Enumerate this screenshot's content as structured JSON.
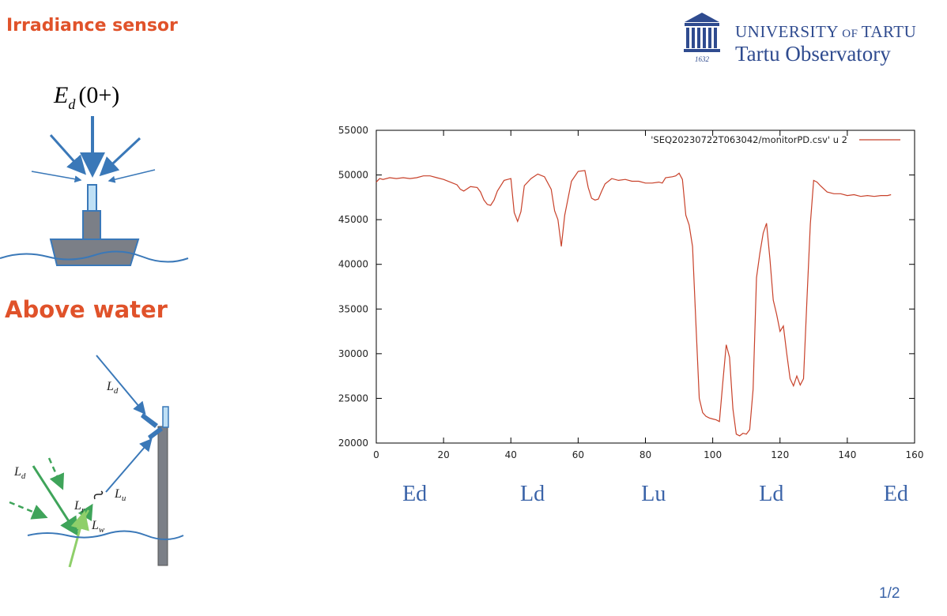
{
  "slide": {
    "irradiance_title": "Irradiance  sensor",
    "irradiance_symbol_main": "E",
    "irradiance_symbol_sub": "d",
    "irradiance_symbol_rest": "(0+)",
    "above_water_title": "Above water",
    "above_labels": {
      "ld_sky": "L",
      "ld_sky_sub": "d",
      "ld_left": "L",
      "ld_left_sub": "d",
      "lr": "L",
      "lr_sub": "r",
      "lu": "L",
      "lu_sub": "u",
      "lw": "L",
      "lw_sub": "w"
    },
    "page_number": "1/2",
    "segment_labels": [
      "Ed",
      "Ld",
      "Lu",
      "Ld",
      "Ed"
    ]
  },
  "logo": {
    "university_part1": "UNIVERSITY",
    "university_of": " OF ",
    "university_part2": "TARTU",
    "subtitle": "Tartu Observatory",
    "year": "1632"
  },
  "colors": {
    "accent_orange": "#e0522a",
    "diagram_blue": "#3a78b8",
    "line_red": "#c8412a",
    "green": "#3fa45a",
    "light_green": "#8fcf6a",
    "logo_blue": "#2f4b8f",
    "label_blue": "#3a63a8"
  },
  "chart_data": {
    "type": "line",
    "legend": "'SEQ20230722T063042/monitorPD.csv' u 2",
    "legend_position": "top-right",
    "xlim": [
      0,
      160
    ],
    "ylim": [
      20000,
      55000
    ],
    "x_ticks": [
      0,
      20,
      40,
      60,
      80,
      100,
      120,
      140,
      160
    ],
    "y_ticks": [
      20000,
      25000,
      30000,
      35000,
      40000,
      45000,
      50000,
      55000
    ],
    "grid": false,
    "series": [
      {
        "name": "'SEQ20230722T063042/monitorPD.csv' u 2",
        "color": "#c8412a",
        "x": [
          0,
          1,
          2,
          4,
          6,
          8,
          10,
          12,
          14,
          16,
          18,
          20,
          22,
          24,
          25,
          26,
          28,
          30,
          31,
          32,
          33,
          34,
          35,
          36,
          38,
          40,
          41,
          42,
          43,
          44,
          46,
          48,
          50,
          52,
          53,
          54,
          55,
          56,
          58,
          60,
          62,
          63,
          64,
          65,
          66,
          67,
          68,
          70,
          72,
          74,
          76,
          78,
          80,
          82,
          84,
          85,
          86,
          88,
          89,
          90,
          91,
          92,
          93,
          94,
          95,
          96,
          97,
          98,
          99,
          100,
          101,
          102,
          103,
          104,
          105,
          106,
          107,
          108,
          109,
          110,
          111,
          112,
          113,
          114,
          115,
          116,
          117,
          118,
          119,
          120,
          121,
          122,
          123,
          124,
          125,
          126,
          127,
          128,
          129,
          130,
          131,
          132,
          134,
          136,
          138,
          140,
          142,
          144,
          146,
          148,
          150,
          152,
          153
        ],
        "y": [
          49200,
          49600,
          49500,
          49700,
          49600,
          49700,
          49600,
          49700,
          49900,
          49900,
          49700,
          49500,
          49200,
          48900,
          48400,
          48200,
          48700,
          48600,
          48100,
          47200,
          46700,
          46600,
          47200,
          48200,
          49400,
          49600,
          45800,
          44800,
          45900,
          48800,
          49600,
          50100,
          49800,
          48400,
          46000,
          45000,
          42000,
          45500,
          49300,
          50400,
          50500,
          48600,
          47400,
          47200,
          47300,
          48200,
          49000,
          49600,
          49400,
          49500,
          49300,
          49300,
          49100,
          49100,
          49200,
          49100,
          49700,
          49800,
          49900,
          50200,
          49500,
          45500,
          44400,
          42000,
          33500,
          25000,
          23400,
          23000,
          22800,
          22700,
          22600,
          22400,
          26800,
          31000,
          29600,
          23800,
          21000,
          20800,
          21100,
          21000,
          21500,
          26000,
          38500,
          41200,
          43500,
          44600,
          40600,
          36000,
          34400,
          32500,
          33100,
          30000,
          27200,
          26400,
          27500,
          26500,
          27200,
          36000,
          44500,
          49400,
          49200,
          48800,
          48100,
          47900,
          47900,
          47700,
          47800,
          47600,
          47700,
          47600,
          47700,
          47700,
          47800
        ]
      }
    ]
  }
}
